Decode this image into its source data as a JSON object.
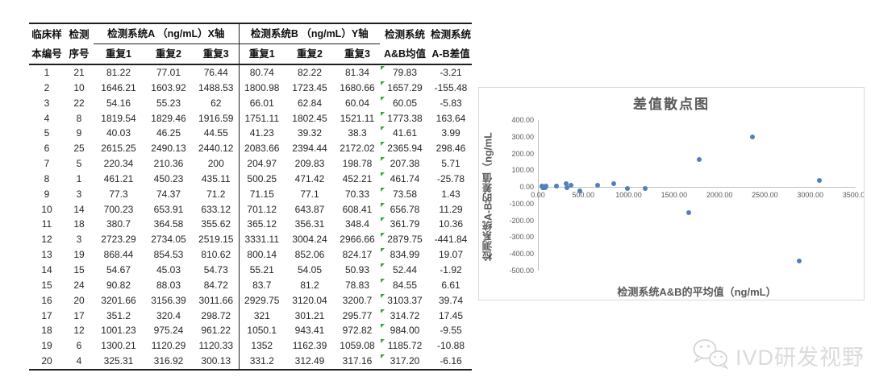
{
  "table": {
    "headers": {
      "sample": [
        "临床样",
        "本编号"
      ],
      "seq": [
        "检测",
        "序号"
      ],
      "group_a": "检测系统A （ng/mL）X轴",
      "group_b": "检测系统B （ng/mL）Y轴",
      "reps": [
        "重复1",
        "重复2",
        "重复3"
      ],
      "mean": [
        "检测系统",
        "A&B均值"
      ],
      "diff": [
        "检测系统",
        "A-B差值"
      ]
    },
    "rows": [
      [
        "1",
        "21",
        "81.22",
        "77.01",
        "76.44",
        "80.74",
        "82.22",
        "81.34",
        "79.83",
        "-3.21"
      ],
      [
        "2",
        "10",
        "1646.21",
        "1603.92",
        "1488.53",
        "1800.98",
        "1723.45",
        "1680.66",
        "1657.29",
        "-155.48"
      ],
      [
        "3",
        "22",
        "54.16",
        "55.23",
        "62",
        "66.01",
        "62.84",
        "60.04",
        "60.05",
        "-5.83"
      ],
      [
        "4",
        "8",
        "1819.54",
        "1829.46",
        "1916.59",
        "1751.11",
        "1802.45",
        "1521.11",
        "1773.38",
        "163.64"
      ],
      [
        "5",
        "9",
        "40.03",
        "46.25",
        "44.55",
        "41.23",
        "39.32",
        "38.3",
        "41.61",
        "3.99"
      ],
      [
        "6",
        "25",
        "2615.25",
        "2490.13",
        "2440.12",
        "2083.66",
        "2394.44",
        "2172.02",
        "2365.94",
        "298.46"
      ],
      [
        "7",
        "5",
        "220.34",
        "210.36",
        "200",
        "204.97",
        "209.83",
        "198.78",
        "207.38",
        "5.71"
      ],
      [
        "8",
        "1",
        "461.21",
        "450.23",
        "435.11",
        "500.25",
        "471.42",
        "452.21",
        "461.74",
        "-25.78"
      ],
      [
        "9",
        "3",
        "77.3",
        "74.37",
        "71.2",
        "71.15",
        "77.1",
        "70.33",
        "73.58",
        "1.43"
      ],
      [
        "10",
        "14",
        "700.23",
        "653.91",
        "633.12",
        "701.12",
        "643.87",
        "608.41",
        "656.78",
        "11.29"
      ],
      [
        "11",
        "18",
        "380.7",
        "364.58",
        "355.62",
        "365.12",
        "356.31",
        "348.4",
        "361.79",
        "10.36"
      ],
      [
        "12",
        "3",
        "2723.29",
        "2734.05",
        "2519.15",
        "3331.11",
        "3004.24",
        "2966.66",
        "2879.75",
        "-441.84"
      ],
      [
        "13",
        "19",
        "868.44",
        "854.53",
        "810.62",
        "800.14",
        "852.06",
        "824.17",
        "834.99",
        "19.07"
      ],
      [
        "14",
        "15",
        "54.67",
        "45.03",
        "54.73",
        "55.21",
        "54.05",
        "50.93",
        "52.44",
        "-1.92"
      ],
      [
        "15",
        "24",
        "90.82",
        "88.03",
        "84.72",
        "83.7",
        "81.2",
        "78.83",
        "84.55",
        "6.61"
      ],
      [
        "16",
        "20",
        "3201.66",
        "3156.39",
        "3011.66",
        "2929.75",
        "3120.04",
        "3200.7",
        "3103.37",
        "39.74"
      ],
      [
        "17",
        "17",
        "351.2",
        "320.4",
        "298.72",
        "321",
        "301.21",
        "295.77",
        "314.72",
        "17.45"
      ],
      [
        "18",
        "12",
        "1001.23",
        "975.24",
        "961.22",
        "1050.1",
        "943.41",
        "972.82",
        "984.00",
        "-9.55"
      ],
      [
        "19",
        "6",
        "1300.21",
        "1120.29",
        "1120.33",
        "1352",
        "1162.39",
        "1059.08",
        "1185.72",
        "-10.88"
      ],
      [
        "20",
        "4",
        "325.31",
        "316.92",
        "300.13",
        "331.2",
        "312.49",
        "317.16",
        "317.20",
        "-6.16"
      ]
    ]
  },
  "chart_data": {
    "type": "scatter",
    "title": "差值散点图",
    "xlabel": "检测系统A&B的平均值（ng/mL）",
    "ylabel": "检测系统A-B的差值（ng/mL",
    "xlim": [
      0,
      3500
    ],
    "ylim": [
      -500,
      400
    ],
    "x_tick_labels": [
      "0.00",
      "500.00",
      "1000.00",
      "1500.00",
      "2000.00",
      "2500.00",
      "3000.00",
      "3500.00"
    ],
    "x_tick_values": [
      0,
      500,
      1000,
      1500,
      2000,
      2500,
      3000,
      3500
    ],
    "y_tick_labels": [
      "400.00",
      "300.00",
      "200.00",
      "100.00",
      "0.00",
      "-100.00",
      "-200.00",
      "-300.00",
      "-400.00",
      "-500.00"
    ],
    "y_tick_values": [
      400,
      300,
      200,
      100,
      0,
      -100,
      -200,
      -300,
      -400,
      -500
    ],
    "grid": false,
    "legend": "none",
    "point_color": "#4f81bd",
    "points": [
      [
        79.83,
        -3.21
      ],
      [
        1657.29,
        -155.48
      ],
      [
        60.05,
        -5.83
      ],
      [
        1773.38,
        163.64
      ],
      [
        41.61,
        3.99
      ],
      [
        2365.94,
        298.46
      ],
      [
        207.38,
        5.71
      ],
      [
        461.74,
        -25.78
      ],
      [
        73.58,
        1.43
      ],
      [
        656.78,
        11.29
      ],
      [
        361.79,
        10.36
      ],
      [
        2879.75,
        -441.84
      ],
      [
        834.99,
        19.07
      ],
      [
        52.44,
        -1.92
      ],
      [
        84.55,
        6.61
      ],
      [
        3103.37,
        39.74
      ],
      [
        314.72,
        17.45
      ],
      [
        984.0,
        -9.55
      ],
      [
        1185.72,
        -10.88
      ],
      [
        317.2,
        -6.16
      ]
    ]
  },
  "watermark": {
    "text": "IVD研发视野",
    "icon": "wechat-icon"
  },
  "colors": {
    "point": "#4f81bd",
    "error_indicator": "#35a535",
    "axis_line": "#bfbfbf",
    "chart_text": "#595959",
    "table_border": "#1f1f1f"
  }
}
